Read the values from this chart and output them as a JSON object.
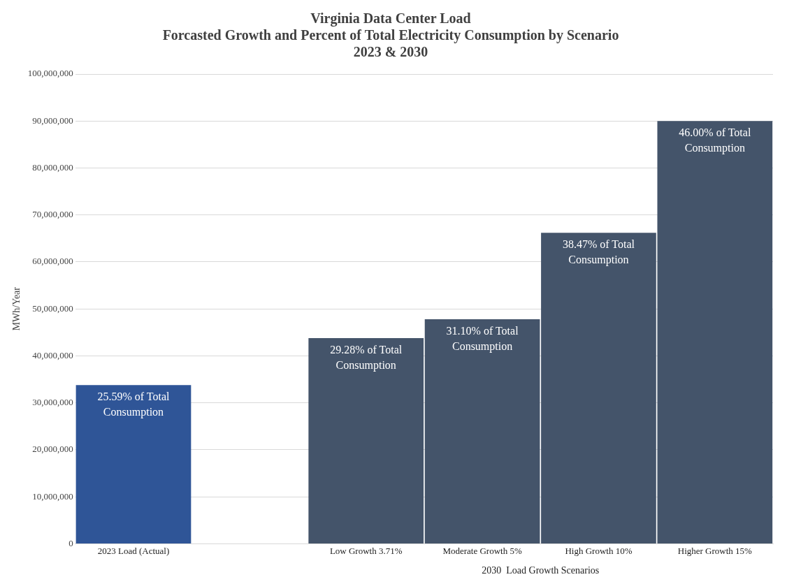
{
  "chart_data": {
    "type": "bar",
    "title": "Virginia Data Center Load\nForcasted Growth and Percent of Total Electricity Consumption by Scenario\n2023 & 2030",
    "xlabel": "2030  Load Growth Scenarios",
    "ylabel": "MWh/Year",
    "categories": [
      "2023 Load (Actual)",
      null,
      "Low Growth 3.71%",
      "Moderate Growth 5%",
      "High Growth 10%",
      "Higher Growth 15%"
    ],
    "values": [
      33800000,
      null,
      43800000,
      47800000,
      66200000,
      90000000
    ],
    "colors": [
      "#2f5597",
      "#44546a",
      "#44546a",
      "#44546a",
      "#44546a",
      "#44546a"
    ],
    "annotations": [
      {
        "text": "25.59% of Total Consumption",
        "x": "2023 Load (Actual)",
        "y": 33800000
      },
      {
        "text": "29.28% of Total Consumption",
        "x": "Low Growth 3.71%",
        "y": 43800000
      },
      {
        "text": "31.10% of Total Consumption",
        "x": "Moderate Growth 5%",
        "y": 47800000
      },
      {
        "text": "38.47% of Total Consumption",
        "x": "High Growth 10%",
        "y": 66200000
      },
      {
        "text": "46.00% of Total Consumption",
        "x": "Higher Growth 15%",
        "y": 90000000
      }
    ],
    "ylim": [
      0,
      100000000
    ],
    "yticks": [
      {
        "value": 0,
        "label": "0"
      },
      {
        "value": 10000000,
        "label": "10,000,000"
      },
      {
        "value": 20000000,
        "label": "20,000,000"
      },
      {
        "value": 30000000,
        "label": "30,000,000"
      },
      {
        "value": 40000000,
        "label": "40,000,000"
      },
      {
        "value": 50000000,
        "label": "50,000,000"
      },
      {
        "value": 60000000,
        "label": "60,000,000"
      },
      {
        "value": 70000000,
        "label": "70,000,000"
      },
      {
        "value": 80000000,
        "label": "80,000,000"
      },
      {
        "value": 90000000,
        "label": "90,000,000"
      },
      {
        "value": 100000000,
        "label": "100,000,000"
      }
    ],
    "grid": "y",
    "legend": false
  }
}
